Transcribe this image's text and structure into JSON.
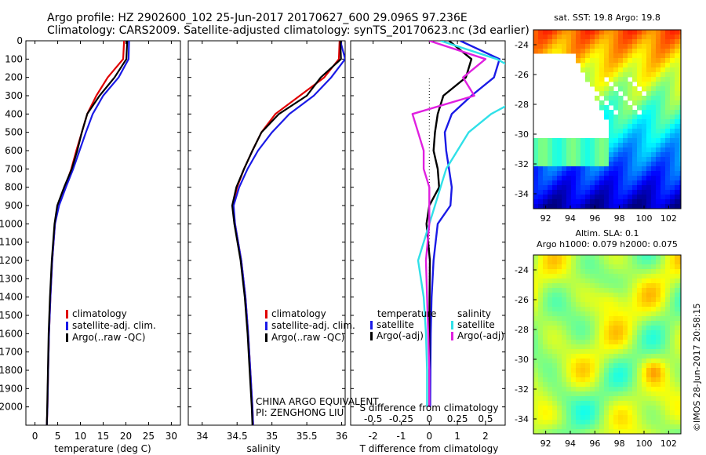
{
  "title": {
    "line1": "Argo profile: HZ 2902600_102 25-Jun-2017 20170627_600 29.096S 97.236E",
    "line2": "Climatology: CARS2009. Satellite-adjusted climatology: synTS_20170623.nc (3d earlier)"
  },
  "colors": {
    "climatology": "#e00000",
    "satellite": "#1a1ae6",
    "argo": "#000000",
    "sat_salinity": "#30e0e8",
    "argo_salinity": "#e020e0"
  },
  "chart_data": [
    {
      "type": "line",
      "name": "temperature-panel",
      "xlabel": "temperature (deg C)",
      "xlim": [
        -2,
        32
      ],
      "ylim": [
        2100,
        0
      ],
      "xticks": [
        0,
        5,
        10,
        15,
        20,
        25,
        30
      ],
      "yticks": [
        0,
        100,
        200,
        300,
        400,
        500,
        600,
        700,
        800,
        900,
        1000,
        1100,
        1200,
        1300,
        1400,
        1500,
        1600,
        1700,
        1800,
        1900,
        2000
      ],
      "legend": [
        "climatology",
        "satellite-adj. clim.",
        "Argo(..raw -QC)"
      ],
      "series": [
        {
          "name": "climatology",
          "color": "#e00000",
          "x": [
            19.6,
            19.4,
            16,
            13.5,
            11.5,
            10.3,
            9.1,
            8.0,
            6.6,
            5.2,
            4.4,
            3.8,
            3.4,
            3.1,
            2.9,
            2.75,
            2.6
          ],
          "y": [
            0,
            100,
            200,
            300,
            400,
            500,
            600,
            700,
            800,
            900,
            1000,
            1200,
            1400,
            1600,
            1800,
            2000,
            2100
          ]
        },
        {
          "name": "satellite-adj. clim.",
          "color": "#1a1ae6",
          "x": [
            20.7,
            20.6,
            18.4,
            15,
            12.7,
            11.2,
            9.8,
            8.4,
            6.8,
            5.3,
            4.4,
            3.8,
            3.4,
            3.1,
            2.9,
            2.75,
            2.6
          ],
          "y": [
            0,
            100,
            200,
            300,
            400,
            500,
            600,
            700,
            800,
            900,
            1000,
            1200,
            1400,
            1600,
            1800,
            2000,
            2100
          ]
        },
        {
          "name": "Argo(..raw -QC)",
          "color": "#000000",
          "x": [
            20.3,
            20.1,
            17.5,
            14.2,
            11.5,
            10.3,
            9.3,
            8.1,
            6.4,
            4.9,
            4.3,
            3.7,
            3.3,
            3.0,
            2.85,
            2.7,
            2.6
          ],
          "y": [
            0,
            100,
            200,
            300,
            400,
            500,
            600,
            700,
            800,
            900,
            1000,
            1200,
            1400,
            1600,
            1800,
            2000,
            2100
          ]
        }
      ]
    },
    {
      "type": "line",
      "name": "salinity-panel",
      "xlabel": "salinity",
      "xlim": [
        33.8,
        36.05
      ],
      "ylim": [
        2100,
        0
      ],
      "xticks": [
        34,
        34.5,
        35,
        35.5,
        36
      ],
      "legend": [
        "climatology",
        "satellite-adj. clim.",
        "Argo(..raw -QC)"
      ],
      "annotation": [
        "CHINA ARGO EQUIVALENT",
        "PI: ZENGHONG LIU"
      ],
      "series": [
        {
          "name": "climatology",
          "color": "#e00000",
          "x": [
            35.97,
            35.96,
            35.75,
            35.4,
            35.05,
            34.85,
            34.72,
            34.6,
            34.5,
            34.44,
            34.47,
            34.56,
            34.62,
            34.66,
            34.69,
            34.72,
            34.73
          ],
          "y": [
            0,
            100,
            200,
            300,
            400,
            500,
            600,
            700,
            800,
            900,
            1000,
            1200,
            1400,
            1600,
            1800,
            2000,
            2100
          ]
        },
        {
          "name": "satellite-adj. clim.",
          "color": "#1a1ae6",
          "x": [
            35.98,
            36.05,
            35.85,
            35.6,
            35.25,
            35.0,
            34.8,
            34.65,
            34.53,
            34.45,
            34.47,
            34.56,
            34.62,
            34.66,
            34.69,
            34.72,
            34.73
          ],
          "y": [
            0,
            100,
            200,
            300,
            400,
            500,
            600,
            700,
            800,
            900,
            1000,
            1200,
            1400,
            1600,
            1800,
            2000,
            2100
          ]
        },
        {
          "name": "Argo(..raw -QC)",
          "color": "#000000",
          "x": [
            35.98,
            35.99,
            35.7,
            35.5,
            35.1,
            34.85,
            34.72,
            34.6,
            34.49,
            34.43,
            34.46,
            34.55,
            34.61,
            34.65,
            34.68,
            34.71,
            34.72
          ],
          "y": [
            0,
            100,
            200,
            300,
            400,
            500,
            600,
            700,
            800,
            900,
            1000,
            1200,
            1400,
            1600,
            1800,
            2000,
            2100
          ]
        }
      ]
    },
    {
      "type": "line",
      "name": "difference-panel",
      "xlabel": "T difference from climatology",
      "xlabel_top": "S difference from climatology",
      "xlim": [
        -2.8,
        2.7
      ],
      "ylim": [
        2100,
        0
      ],
      "xticks": [
        -2,
        -1,
        0,
        1,
        2
      ],
      "xticks_top": [
        -0.5,
        -0.25,
        0,
        0.25,
        0.5
      ],
      "legend_headers": [
        "temperature",
        "salinity"
      ],
      "legend": [
        "satellite",
        "Argo(-adj)",
        "satellite",
        "Argo(-adj)"
      ],
      "series": [
        {
          "name": "T satellite",
          "color": "#1a1ae6",
          "x": [
            1.1,
            2.5,
            2.3,
            1.5,
            0.8,
            0.55,
            0.6,
            0.7,
            0.8,
            0.75,
            0.3,
            0.15,
            0.08,
            0.05,
            0.04,
            0.03
          ],
          "y": [
            0,
            100,
            200,
            300,
            400,
            500,
            600,
            700,
            800,
            900,
            1000,
            1200,
            1400,
            1600,
            1800,
            2000
          ]
        },
        {
          "name": "T Argo(-adj)",
          "color": "#000000",
          "x": [
            0.7,
            1.5,
            1.3,
            0.5,
            0.3,
            0.2,
            0.15,
            0.3,
            0.35,
            0.0,
            -0.1,
            0.02,
            0.01,
            0.0,
            0.0,
            0.0
          ],
          "y": [
            0,
            100,
            200,
            300,
            400,
            500,
            600,
            700,
            800,
            900,
            1000,
            1200,
            1400,
            1600,
            1800,
            2000
          ]
        },
        {
          "name": "S satellite",
          "color": "#30e0e8",
          "x": [
            0.1,
            0.6,
            0.9,
            0.85,
            0.55,
            0.35,
            0.25,
            0.15,
            0.1,
            0.05,
            0.0,
            -0.1,
            -0.05,
            -0.03,
            -0.02,
            -0.02
          ],
          "y": [
            0,
            100,
            200,
            300,
            400,
            500,
            600,
            700,
            800,
            900,
            1000,
            1200,
            1400,
            1600,
            1800,
            2000
          ]
        },
        {
          "name": "S Argo(-adj)",
          "color": "#e020e0",
          "x": [
            0.0,
            0.5,
            0.3,
            0.4,
            -0.15,
            -0.1,
            -0.05,
            -0.05,
            0.0,
            0.0,
            0.0,
            -0.03,
            -0.02,
            -0.01,
            0.0,
            0.0
          ],
          "y": [
            0,
            100,
            200,
            300,
            400,
            500,
            600,
            700,
            800,
            900,
            1000,
            1200,
            1400,
            1600,
            1800,
            2000
          ]
        }
      ]
    },
    {
      "type": "heatmap",
      "name": "sst-map",
      "title": "sat. SST: 19.8 Argo: 19.8",
      "xlim": [
        91,
        103
      ],
      "ylim": [
        -35,
        -23
      ],
      "xticks": [
        92,
        94,
        96,
        98,
        100,
        102
      ],
      "yticks": [
        -24,
        -26,
        -28,
        -30,
        -32,
        -34
      ]
    },
    {
      "type": "heatmap",
      "name": "sla-map",
      "title_lines": [
        "Altim. SLA: 0.1",
        "Argo h1000: 0.079 h2000: 0.075"
      ],
      "xlim": [
        91,
        103
      ],
      "ylim": [
        -35,
        -23
      ],
      "xticks": [
        92,
        94,
        96,
        98,
        100,
        102
      ],
      "yticks": [
        -24,
        -26,
        -28,
        -30,
        -32,
        -34
      ]
    }
  ],
  "credit": "©IMOS 28-Jun-2017 20:58:15"
}
